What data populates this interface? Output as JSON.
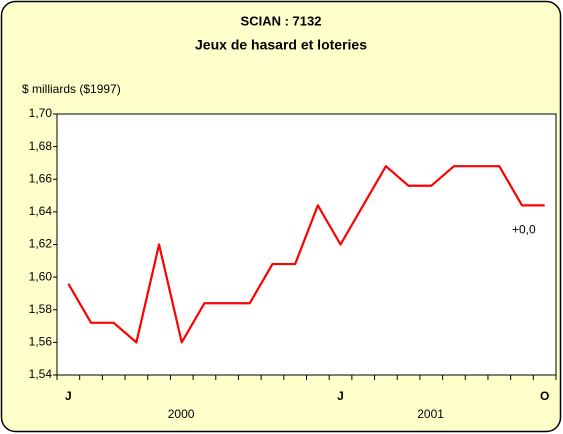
{
  "chart_data": {
    "type": "line",
    "title": "SCIAN : 7132",
    "subtitle": "Jeux de hasard et loteries",
    "y_label": "$ milliards ($1997)",
    "categories": [
      "J",
      null,
      null,
      null,
      null,
      null,
      null,
      null,
      null,
      null,
      null,
      null,
      "J",
      null,
      null,
      null,
      null,
      null,
      null,
      null,
      null,
      "O"
    ],
    "year_labels": [
      "2000",
      "2001"
    ],
    "series": [
      {
        "name": "Jeux de hasard et loteries",
        "color": "#ff0000",
        "values": [
          1.596,
          1.572,
          1.572,
          1.56,
          1.62,
          1.56,
          1.584,
          1.584,
          1.584,
          1.608,
          1.608,
          1.644,
          1.62,
          1.644,
          1.668,
          1.656,
          1.656,
          1.668,
          1.668,
          1.668,
          1.644,
          1.644
        ]
      }
    ],
    "annotation": "+0,0",
    "ylim": [
      1.54,
      1.7
    ],
    "yticks": [
      {
        "value": 1.54,
        "label": "1,54"
      },
      {
        "value": 1.56,
        "label": "1,56"
      },
      {
        "value": 1.58,
        "label": "1,58"
      },
      {
        "value": 1.6,
        "label": "1,60"
      },
      {
        "value": 1.62,
        "label": "1,62"
      },
      {
        "value": 1.64,
        "label": "1,64"
      },
      {
        "value": 1.66,
        "label": "1,66"
      },
      {
        "value": 1.68,
        "label": "1,68"
      },
      {
        "value": 1.7,
        "label": "1,70"
      }
    ],
    "grid": false
  }
}
